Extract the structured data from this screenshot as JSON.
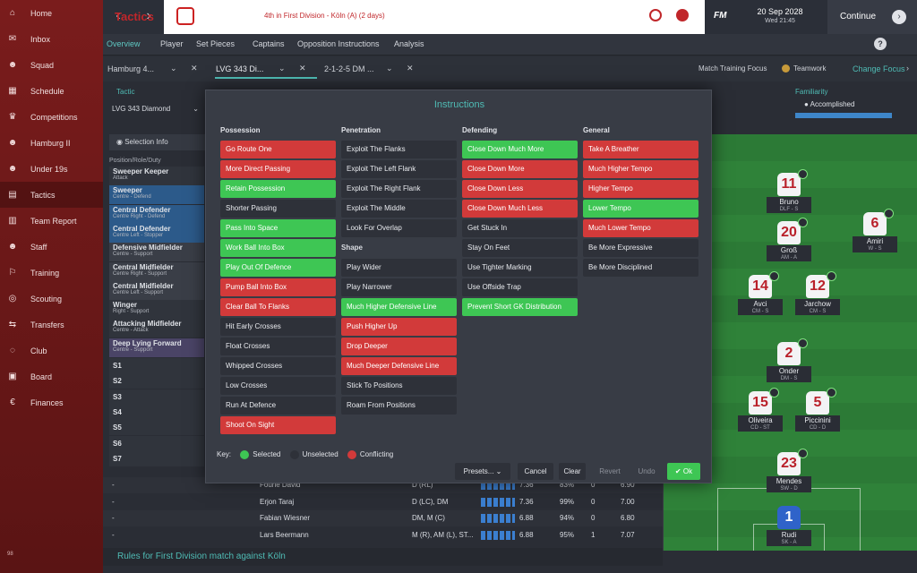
{
  "sidebar": {
    "items": [
      {
        "label": "Home",
        "icon": "home-icon",
        "glyph": "⌂"
      },
      {
        "label": "Inbox",
        "icon": "inbox-icon",
        "glyph": "✉"
      },
      {
        "label": "Squad",
        "icon": "squad-icon",
        "glyph": "☻"
      },
      {
        "label": "Schedule",
        "icon": "schedule-icon",
        "glyph": "▦"
      },
      {
        "label": "Competitions",
        "icon": "trophy-icon",
        "glyph": "♛"
      },
      {
        "label": "Hamburg II",
        "icon": "team-icon",
        "glyph": "☻"
      },
      {
        "label": "Under 19s",
        "icon": "team-icon",
        "glyph": "☻"
      },
      {
        "label": "Tactics",
        "icon": "tactics-icon",
        "glyph": "▤"
      },
      {
        "label": "Team Report",
        "icon": "report-icon",
        "glyph": "▥"
      },
      {
        "label": "Staff",
        "icon": "staff-icon",
        "glyph": "☻"
      },
      {
        "label": "Training",
        "icon": "training-icon",
        "glyph": "⚐"
      },
      {
        "label": "Scouting",
        "icon": "scouting-icon",
        "glyph": "◎"
      },
      {
        "label": "Transfers",
        "icon": "transfers-icon",
        "glyph": "⇆"
      },
      {
        "label": "Club",
        "icon": "club-icon",
        "glyph": "◌"
      },
      {
        "label": "Board",
        "icon": "board-icon",
        "glyph": "▣"
      },
      {
        "label": "Finances",
        "icon": "finances-icon",
        "glyph": "€"
      }
    ],
    "corner": "98"
  },
  "topbar": {
    "title": "Tactics",
    "subtitle": "4th in First Division - Köln (A) (2 days)",
    "fm": "FM",
    "date": "20 Sep 2028",
    "time": "Wed 21:45",
    "continue": "Continue"
  },
  "subnav": {
    "tabs": [
      "Overview",
      "Player",
      "Set Pieces",
      "Captains",
      "Opposition Instructions",
      "Analysis"
    ],
    "help": "?"
  },
  "tactic_tabs": {
    "tabs": [
      "Hamburg 4...",
      "LVG 343 Di...",
      "2-1-2-5 DM ..."
    ],
    "match_training": "Match Training Focus",
    "teamwork": "Teamwork",
    "change_focus": "Change Focus"
  },
  "left": {
    "tactic_label": "Tactic",
    "tactic_value": "LVG 343 Diamond",
    "selection_info": "Selection Info",
    "prd_header": "Position/Role/Duty",
    "roles": [
      {
        "name": "Sweeper Keeper",
        "duty": "Attack",
        "bg": "#30343c"
      },
      {
        "name": "Sweeper",
        "duty": "Centre - Defend",
        "bg": "#2c5a8a"
      },
      {
        "name": "Central Defender",
        "duty": "Centre Right - Defend",
        "bg": "#2c5a8a"
      },
      {
        "name": "Central Defender",
        "duty": "Centre Left - Stopper",
        "bg": "#2c5a8a"
      },
      {
        "name": "Defensive Midfielder",
        "duty": "Centre - Support",
        "bg": "#3a3e47"
      },
      {
        "name": "Central Midfielder",
        "duty": "Centre Right - Support",
        "bg": "#3a3e47"
      },
      {
        "name": "Central Midfielder",
        "duty": "Centre Left - Support",
        "bg": "#3a3e47"
      },
      {
        "name": "Winger",
        "duty": "Right - Support",
        "bg": "#30343c"
      },
      {
        "name": "Attacking Midfielder",
        "duty": "Centre - Attack",
        "bg": "#30343c"
      },
      {
        "name": "Deep Lying Forward",
        "duty": "Centre - Support",
        "bg": "#4a4466"
      }
    ],
    "subs": [
      "S1",
      "S2",
      "S3",
      "S4",
      "S5",
      "S6",
      "S7"
    ]
  },
  "familiarity": {
    "label": "Familiarity",
    "value": "Accomplished",
    "level": 1.0
  },
  "pitch_players": [
    {
      "num": "11",
      "name": "Bruno",
      "pos": "DLF - S",
      "gk": false
    },
    {
      "num": "20",
      "name": "Groß",
      "pos": "AM - A",
      "gk": false
    },
    {
      "num": "6",
      "name": "Amiri",
      "pos": "W - S",
      "gk": false
    },
    {
      "num": "14",
      "name": "Avci",
      "pos": "CM - S",
      "gk": false
    },
    {
      "num": "12",
      "name": "Jarchow",
      "pos": "CM - S",
      "gk": false
    },
    {
      "num": "2",
      "name": "Onder",
      "pos": "DM - S",
      "gk": false
    },
    {
      "num": "15",
      "name": "Oliveira",
      "pos": "CD - ST",
      "gk": false
    },
    {
      "num": "5",
      "name": "Piccinini",
      "pos": "CD - D",
      "gk": false
    },
    {
      "num": "23",
      "name": "Mendes",
      "pos": "SW - D",
      "gk": false
    },
    {
      "num": "1",
      "name": "Rudi",
      "pos": "SK - A",
      "gk": true
    }
  ],
  "squad_rows": [
    {
      "dash": "-",
      "name": "Fourie David",
      "pos": "D (RL)",
      "rating": "7.36",
      "cond": "83%",
      "n": "0",
      "avg": "6.90"
    },
    {
      "dash": "-",
      "name": "Erjon Taraj",
      "pos": "D (LC), DM",
      "rating": "7.36",
      "cond": "99%",
      "n": "0",
      "avg": "7.00"
    },
    {
      "dash": "-",
      "name": "Fabian Wiesner",
      "pos": "DM, M (C)",
      "rating": "6.88",
      "cond": "94%",
      "n": "0",
      "avg": "6.80"
    },
    {
      "dash": "-",
      "name": "Lars Beermann",
      "pos": "M (R), AM (L), ST...",
      "rating": "6.88",
      "cond": "95%",
      "n": "1",
      "avg": "7.07"
    }
  ],
  "bottom": {
    "rules": "Rules for First Division match against Köln"
  },
  "modal": {
    "title": "Instructions",
    "columns": [
      {
        "title": "Possession",
        "items": [
          {
            "label": "Go Route One",
            "state": "conflict"
          },
          {
            "label": "More Direct Passing",
            "state": "conflict"
          },
          {
            "label": "Retain Possession",
            "state": "selected"
          },
          {
            "label": "Shorter Passing",
            "state": "unselected"
          },
          {
            "label": "Pass Into Space",
            "state": "selected"
          },
          {
            "label": "Work Ball Into Box",
            "state": "selected"
          },
          {
            "label": "Play Out Of Defence",
            "state": "selected"
          },
          {
            "label": "Pump Ball Into Box",
            "state": "conflict"
          },
          {
            "label": "Clear Ball To Flanks",
            "state": "conflict"
          },
          {
            "label": "Hit Early Crosses",
            "state": "unselected"
          },
          {
            "label": "Float Crosses",
            "state": "unselected"
          },
          {
            "label": "Whipped Crosses",
            "state": "unselected"
          },
          {
            "label": "Low Crosses",
            "state": "unselected"
          },
          {
            "label": "Run At Defence",
            "state": "unselected"
          },
          {
            "label": "Shoot On Sight",
            "state": "conflict"
          }
        ]
      },
      {
        "title": "Penetration",
        "items": [
          {
            "label": "Exploit The Flanks",
            "state": "unselected"
          },
          {
            "label": "Exploit The Left Flank",
            "state": "unselected"
          },
          {
            "label": "Exploit The Right Flank",
            "state": "unselected"
          },
          {
            "label": "Exploit The Middle",
            "state": "unselected"
          },
          {
            "label": "Look For Overlap",
            "state": "unselected"
          },
          {
            "label": "Shape",
            "state": "sub"
          },
          {
            "label": "Play Wider",
            "state": "unselected"
          },
          {
            "label": "Play Narrower",
            "state": "unselected"
          },
          {
            "label": "Much Higher Defensive Line",
            "state": "selected"
          },
          {
            "label": "Push Higher Up",
            "state": "conflict"
          },
          {
            "label": "Drop Deeper",
            "state": "conflict"
          },
          {
            "label": "Much Deeper Defensive Line",
            "state": "conflict"
          },
          {
            "label": "Stick To Positions",
            "state": "unselected"
          },
          {
            "label": "Roam From Positions",
            "state": "unselected"
          }
        ]
      },
      {
        "title": "Defending",
        "items": [
          {
            "label": "Close Down Much More",
            "state": "selected"
          },
          {
            "label": "Close Down More",
            "state": "conflict"
          },
          {
            "label": "Close Down Less",
            "state": "conflict"
          },
          {
            "label": "Close Down Much Less",
            "state": "conflict"
          },
          {
            "label": "Get Stuck In",
            "state": "unselected"
          },
          {
            "label": "Stay On Feet",
            "state": "unselected"
          },
          {
            "label": "Use Tighter Marking",
            "state": "unselected"
          },
          {
            "label": "Use Offside Trap",
            "state": "unselected"
          },
          {
            "label": "Prevent Short GK Distribution",
            "state": "selected"
          }
        ]
      },
      {
        "title": "General",
        "items": [
          {
            "label": "Take A Breather",
            "state": "conflict"
          },
          {
            "label": "Much Higher Tempo",
            "state": "conflict"
          },
          {
            "label": "Higher Tempo",
            "state": "conflict"
          },
          {
            "label": "Lower Tempo",
            "state": "selected"
          },
          {
            "label": "Much Lower Tempo",
            "state": "conflict"
          },
          {
            "label": "Be More Expressive",
            "state": "unselected"
          },
          {
            "label": "Be More Disciplined",
            "state": "unselected"
          }
        ]
      }
    ],
    "key": {
      "label": "Key:",
      "selected": "Selected",
      "unselected": "Unselected",
      "conflicting": "Conflicting"
    },
    "buttons": {
      "presets": "Presets...",
      "cancel": "Cancel",
      "clear": "Clear",
      "revert": "Revert",
      "undo": "Undo",
      "ok": "Ok"
    }
  },
  "colors": {
    "selected": "#3ec654",
    "conflict": "#d23a3a",
    "accent": "#4fbcb5",
    "brand": "#c0262a"
  }
}
